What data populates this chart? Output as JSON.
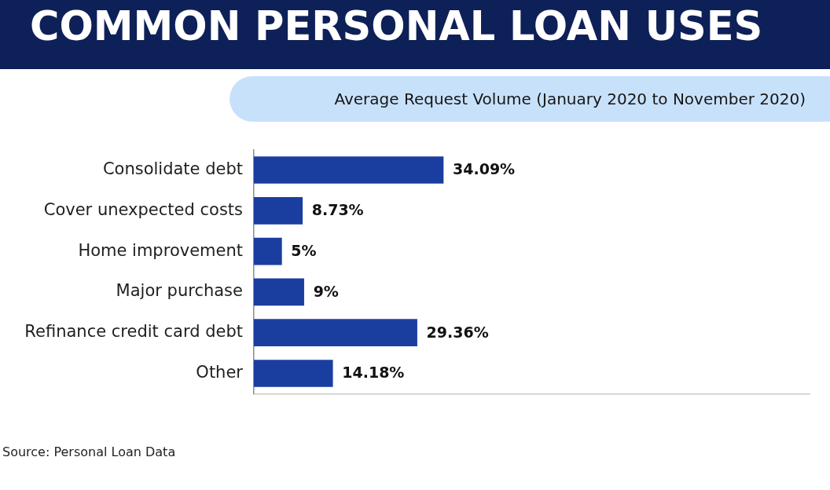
{
  "chart_data": {
    "type": "bar",
    "orientation": "horizontal",
    "title": "COMMON PERSONAL LOAN USES",
    "subtitle": "Average Request Volume (January 2020 to November 2020)",
    "categories": [
      "Consolidate debt",
      "Cover unexpected costs",
      "Home improvement",
      "Major purchase",
      "Refinance credit card debt",
      "Other"
    ],
    "values": [
      34.09,
      8.73,
      5,
      9,
      29.36,
      14.18
    ],
    "color": "#1a3e9f",
    "value_labels": [
      "34.09%",
      "8.73%",
      "5%",
      "9%",
      "29.36%",
      "14.18%"
    ],
    "xlim": [
      0,
      100
    ],
    "tick_labels": "y",
    "annotations": [
      "Source: Personal Loan Data"
    ]
  }
}
